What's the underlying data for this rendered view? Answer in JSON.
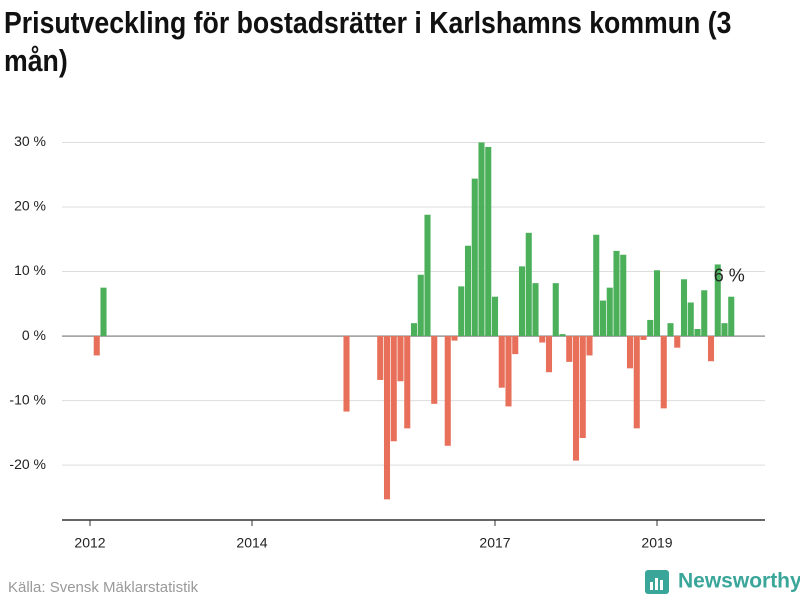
{
  "chart_data": {
    "type": "bar",
    "title": "Prisutveckling för bostadsrätter i Karlshamns kommun (3 mån)",
    "source": "Källa: Svensk Mäklarstatistik",
    "brand": "Newsworthy",
    "categories": [
      "2012",
      null,
      null,
      null,
      null,
      null,
      null,
      null,
      null,
      null,
      null,
      null,
      null,
      null,
      null,
      null,
      null,
      null,
      null,
      null,
      null,
      null,
      null,
      null,
      "2014",
      null,
      null,
      null,
      null,
      null,
      null,
      null,
      null,
      null,
      null,
      null,
      null,
      null,
      null,
      null,
      null,
      null,
      null,
      null,
      null,
      null,
      null,
      null,
      null,
      null,
      null,
      null,
      null,
      null,
      null,
      null,
      null,
      null,
      null,
      null,
      "2017",
      null,
      null,
      null,
      null,
      null,
      null,
      null,
      null,
      null,
      null,
      null,
      null,
      null,
      null,
      null,
      null,
      null,
      null,
      null,
      null,
      null,
      null,
      null,
      "2019",
      null,
      null,
      null,
      null,
      null,
      null,
      null,
      null,
      null,
      null,
      null
    ],
    "values": [
      null,
      -3,
      7.5,
      null,
      null,
      null,
      null,
      null,
      null,
      null,
      null,
      null,
      null,
      null,
      null,
      null,
      null,
      null,
      null,
      null,
      null,
      null,
      null,
      null,
      null,
      null,
      null,
      null,
      null,
      null,
      null,
      null,
      null,
      null,
      null,
      null,
      null,
      null,
      -11.7,
      null,
      null,
      null,
      null,
      -6.8,
      -25.3,
      -16.3,
      -7,
      -14.3,
      2,
      9.5,
      18.8,
      -10.5,
      null,
      -17,
      -0.7,
      7.7,
      14,
      24.4,
      30,
      29.3,
      6.1,
      -8,
      -10.9,
      -2.8,
      10.8,
      16,
      8.2,
      -1,
      -5.6,
      8.2,
      0.3,
      -4,
      -19.3,
      -15.8,
      -3,
      15.7,
      5.5,
      7.5,
      13.2,
      12.6,
      -5,
      -14.3,
      -0.6,
      2.5,
      10.2,
      -11.2,
      2,
      -1.8,
      8.8,
      5.2,
      1.1,
      7.1,
      -3.9,
      11.1,
      2,
      6.1
    ],
    "value_labels": [
      null,
      null,
      null,
      null,
      null,
      null,
      null,
      null,
      null,
      null,
      null,
      null,
      null,
      null,
      null,
      null,
      null,
      null,
      null,
      null,
      null,
      null,
      null,
      null,
      null,
      null,
      null,
      null,
      null,
      null,
      null,
      null,
      null,
      null,
      null,
      null,
      null,
      null,
      null,
      null,
      null,
      null,
      null,
      null,
      null,
      null,
      null,
      null,
      null,
      null,
      null,
      null,
      null,
      null,
      null,
      null,
      null,
      null,
      null,
      null,
      null,
      null,
      null,
      null,
      null,
      null,
      null,
      null,
      null,
      null,
      null,
      null,
      null,
      null,
      null,
      null,
      null,
      null,
      null,
      null,
      null,
      null,
      null,
      null,
      null,
      null,
      null,
      null,
      null,
      null,
      null,
      null,
      null,
      null,
      null,
      "6 %"
    ],
    "positive_color": "#4cb05a",
    "negative_color": "#e8705a",
    "ylim": [
      -28.5,
      31
    ],
    "yticks": [
      {
        "value": -20,
        "label": "-20 %"
      },
      {
        "value": -10,
        "label": "-10 %"
      },
      {
        "value": 0,
        "label": "0 %"
      },
      {
        "value": 10,
        "label": "10 %"
      },
      {
        "value": 20,
        "label": "20 %"
      },
      {
        "value": 30,
        "label": "30 %"
      }
    ],
    "grid": true
  }
}
